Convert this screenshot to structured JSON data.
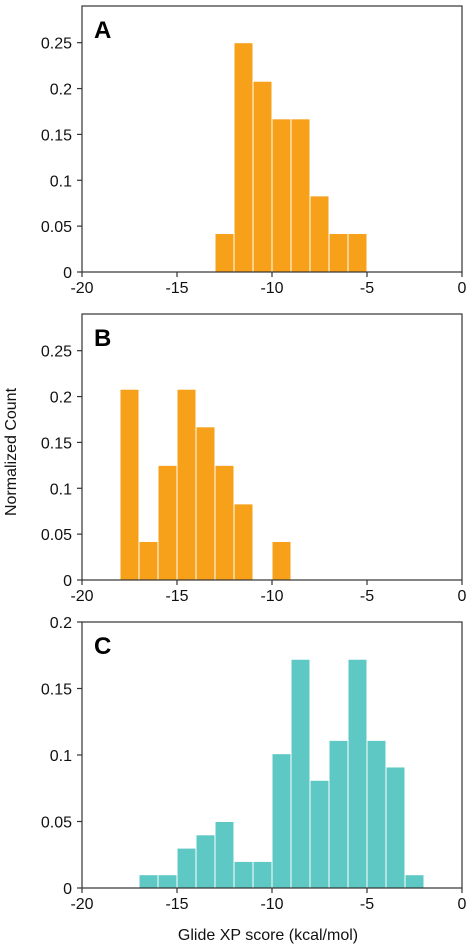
{
  "ylabel": "Normalized Count",
  "xlabel": "Glide XP score (kcal/mol)",
  "chart_data": [
    {
      "type": "bar",
      "panel": "A",
      "color": "#f7a11a",
      "bin_width": 1,
      "xlim": [
        -20,
        0
      ],
      "ylim": [
        0,
        0.29
      ],
      "xticks": [
        -20,
        -15,
        -10,
        -5,
        0
      ],
      "yticks": [
        0,
        0.05,
        0.1,
        0.15,
        0.2,
        0.25
      ],
      "bins": [
        {
          "x0": -13,
          "value": 0.042
        },
        {
          "x0": -12,
          "value": 0.25
        },
        {
          "x0": -11,
          "value": 0.208
        },
        {
          "x0": -10,
          "value": 0.167
        },
        {
          "x0": -9,
          "value": 0.167
        },
        {
          "x0": -8,
          "value": 0.083
        },
        {
          "x0": -7,
          "value": 0.042
        },
        {
          "x0": -6,
          "value": 0.042
        }
      ]
    },
    {
      "type": "bar",
      "panel": "B",
      "color": "#f7a11a",
      "bin_width": 1,
      "xlim": [
        -20,
        0
      ],
      "ylim": [
        0,
        0.29
      ],
      "xticks": [
        -20,
        -15,
        -10,
        -5,
        0
      ],
      "yticks": [
        0,
        0.05,
        0.1,
        0.15,
        0.2,
        0.25
      ],
      "bins": [
        {
          "x0": -18,
          "value": 0.208
        },
        {
          "x0": -17,
          "value": 0.042
        },
        {
          "x0": -16,
          "value": 0.125
        },
        {
          "x0": -15,
          "value": 0.208
        },
        {
          "x0": -14,
          "value": 0.167
        },
        {
          "x0": -13,
          "value": 0.125
        },
        {
          "x0": -12,
          "value": 0.083
        },
        {
          "x0": -10,
          "value": 0.042
        }
      ]
    },
    {
      "type": "bar",
      "panel": "C",
      "color": "#5ec8c4",
      "bin_width": 1,
      "xlim": [
        -20,
        0
      ],
      "ylim": [
        0,
        0.2
      ],
      "xticks": [
        -20,
        -15,
        -10,
        -5,
        0
      ],
      "yticks": [
        0,
        0.05,
        0.1,
        0.15,
        0.2
      ],
      "bins": [
        {
          "x0": -17,
          "value": 0.01
        },
        {
          "x0": -16,
          "value": 0.01
        },
        {
          "x0": -15,
          "value": 0.03
        },
        {
          "x0": -14,
          "value": 0.04
        },
        {
          "x0": -13,
          "value": 0.05
        },
        {
          "x0": -12,
          "value": 0.02
        },
        {
          "x0": -11,
          "value": 0.02
        },
        {
          "x0": -10,
          "value": 0.101
        },
        {
          "x0": -9,
          "value": 0.172
        },
        {
          "x0": -8,
          "value": 0.081
        },
        {
          "x0": -7,
          "value": 0.111
        },
        {
          "x0": -6,
          "value": 0.172
        },
        {
          "x0": -5,
          "value": 0.111
        },
        {
          "x0": -4,
          "value": 0.091
        },
        {
          "x0": -3,
          "value": 0.01
        }
      ]
    }
  ]
}
